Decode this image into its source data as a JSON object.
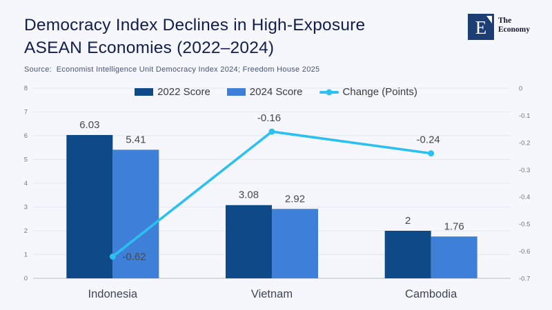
{
  "header": {
    "title_line1": "Democracy Index Declines in High-Exposure",
    "title_line2": "ASEAN Economies (2022–2024)",
    "source": "Source:  Economist Intelligence Unit Democracy Index 2024; Freedom House 2025",
    "logo": {
      "mark": "E",
      "name_line1": "The",
      "name_line2": "Economy"
    }
  },
  "legend": [
    {
      "label": "2022 Score",
      "marker": "swatch",
      "color": "#0d4a87"
    },
    {
      "label": "2024 Score",
      "marker": "swatch",
      "color": "#3e80d7"
    },
    {
      "label": "Change (Points)",
      "marker": "line",
      "color": "#2bc0ef"
    }
  ],
  "chart_data": {
    "type": "bar",
    "subtype": "grouped-bars-with-secondary-axis-line",
    "categories": [
      "Indonesia",
      "Vietnam",
      "Cambodia"
    ],
    "series": [
      {
        "name": "2022 Score",
        "type": "bar",
        "axis": "left",
        "color": "#0d4a87",
        "values": [
          6.03,
          3.08,
          2
        ],
        "labels": [
          "6.03",
          "3.08",
          "2"
        ]
      },
      {
        "name": "2024 Score",
        "type": "bar",
        "axis": "left",
        "color": "#3e80d7",
        "values": [
          5.41,
          2.92,
          1.76
        ],
        "labels": [
          "5.41",
          "2.92",
          "1.76"
        ]
      },
      {
        "name": "Change (Points)",
        "type": "line",
        "axis": "right",
        "color": "#2bc0ef",
        "values": [
          -0.62,
          -0.16,
          -0.24
        ],
        "labels": [
          "-0.62",
          "-0.16",
          "-0.24"
        ],
        "label_positions": [
          "right",
          "above",
          "above"
        ]
      }
    ],
    "left_axis": {
      "range": [
        0,
        8
      ],
      "ticks": [
        "8",
        "7",
        "6",
        "5",
        "4",
        "3",
        "2",
        "1",
        "0"
      ]
    },
    "right_axis": {
      "range": [
        0,
        -0.7
      ],
      "ticks": [
        "0",
        "-0.1",
        "-0.2",
        "-0.3",
        "-0.4",
        "-0.5",
        "-0.6",
        "-0.7"
      ]
    },
    "grid": true,
    "legend_position": "top-center"
  },
  "colors": {
    "background": "#f6f7fd",
    "title": "#101d4d",
    "source_text": "#46536e",
    "logo_navy": "#1d3e75",
    "gridline": "#e4e7f1",
    "axis_line": "#c9ced9",
    "tick_text": "#70747f",
    "value_label": "#474747",
    "category_label": "#3f4552"
  }
}
